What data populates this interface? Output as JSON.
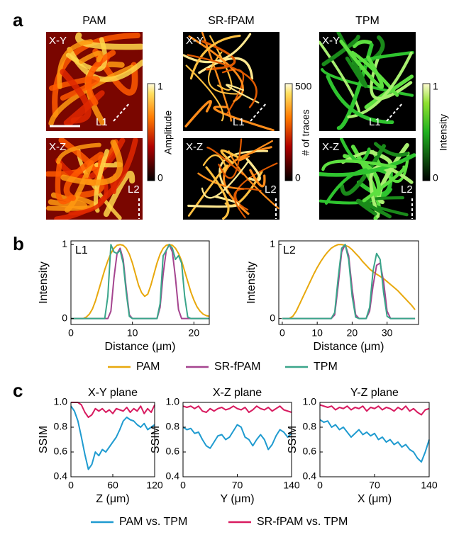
{
  "panel_a": {
    "label": "a",
    "columns": [
      {
        "title": "PAM",
        "colorbar": {
          "label": "Amplitude",
          "max": 1,
          "min": 0
        }
      },
      {
        "title": "SR-fPAM",
        "colorbar": {
          "label": "# of traces",
          "max": 500,
          "min": 0
        }
      },
      {
        "title": "TPM",
        "colorbar": {
          "label": "Intensity",
          "max": 1,
          "min": 0
        }
      }
    ],
    "view_labels": [
      "X-Y",
      "X-Z"
    ],
    "line_labels": [
      "L1",
      "L2"
    ]
  },
  "panel_b": {
    "label": "b"
  },
  "panel_c": {
    "label": "c"
  },
  "chart_data": [
    {
      "type": "line",
      "annotation": "L1",
      "xlabel": "Distance (μm)",
      "ylabel": "Intensity",
      "xlim": [
        0,
        22.5
      ],
      "ylim": [
        -0.08,
        1.05
      ],
      "xticks": [
        0,
        10,
        20
      ],
      "yticks": [
        0,
        1
      ],
      "x": [
        0,
        0.5,
        1,
        1.5,
        2,
        2.5,
        3,
        3.5,
        4,
        4.5,
        5,
        5.5,
        6,
        6.5,
        7,
        7.5,
        8,
        8.5,
        9,
        9.5,
        10,
        10.5,
        11,
        11.5,
        12,
        12.5,
        13,
        13.5,
        14,
        14.5,
        15,
        15.5,
        16,
        16.5,
        17,
        17.5,
        18,
        18.5,
        19,
        19.5,
        20,
        20.5,
        21,
        21.5,
        22,
        22.5
      ],
      "series": [
        {
          "name": "PAM",
          "color": "#e8a80c",
          "values": [
            0,
            0,
            0,
            0,
            0,
            0.02,
            0.06,
            0.13,
            0.24,
            0.38,
            0.52,
            0.66,
            0.78,
            0.88,
            0.95,
            0.99,
            1.0,
            0.99,
            0.95,
            0.87,
            0.75,
            0.6,
            0.45,
            0.35,
            0.3,
            0.33,
            0.45,
            0.6,
            0.75,
            0.87,
            0.95,
            0.99,
            1.0,
            0.99,
            0.95,
            0.88,
            0.78,
            0.64,
            0.5,
            0.36,
            0.25,
            0.16,
            0.1,
            0.06,
            0.04,
            0.03
          ]
        },
        {
          "name": "SR-fPAM",
          "color": "#a5448f",
          "values": [
            0,
            0,
            0,
            0,
            0,
            0,
            0,
            0,
            0,
            0,
            0,
            0,
            0,
            0.1,
            0.55,
            0.88,
            0.95,
            0.8,
            0.4,
            0.05,
            0,
            0,
            0,
            0,
            0,
            0,
            0,
            0,
            0,
            0.15,
            0.6,
            0.92,
            1.0,
            0.9,
            0.55,
            0.12,
            0,
            0,
            0,
            0,
            0,
            0,
            0,
            0,
            0,
            0
          ]
        },
        {
          "name": "TPM",
          "color": "#3aa58a",
          "values": [
            0,
            0,
            0,
            0,
            0,
            0,
            0,
            0,
            0,
            0,
            0,
            0,
            0.3,
            1.0,
            0.9,
            0.88,
            0.92,
            0.75,
            0.35,
            0.03,
            0,
            0,
            0,
            0,
            0,
            0,
            0,
            0,
            0,
            0.2,
            0.85,
            0.92,
            1.0,
            0.95,
            0.8,
            0.85,
            0.75,
            0.3,
            0.02,
            0,
            0,
            0,
            0,
            0,
            0,
            0
          ]
        }
      ]
    },
    {
      "type": "line",
      "annotation": "L2",
      "xlabel": "Distance (μm)",
      "ylabel": "Intensity",
      "xlim": [
        -1,
        39
      ],
      "ylim": [
        -0.08,
        1.05
      ],
      "xticks": [
        0,
        10,
        20,
        30
      ],
      "yticks": [
        0,
        1
      ],
      "x": [
        0,
        1,
        2,
        3,
        4,
        5,
        6,
        7,
        8,
        9,
        10,
        11,
        12,
        13,
        14,
        15,
        16,
        17,
        18,
        19,
        20,
        21,
        22,
        23,
        24,
        25,
        26,
        27,
        28,
        29,
        30,
        31,
        32,
        33,
        34,
        35,
        36,
        37,
        38
      ],
      "series": [
        {
          "name": "PAM",
          "color": "#e8a80c",
          "values": [
            0,
            0,
            0,
            0.03,
            0.1,
            0.2,
            0.3,
            0.4,
            0.5,
            0.6,
            0.69,
            0.77,
            0.84,
            0.9,
            0.95,
            0.98,
            1.0,
            1.0,
            0.99,
            0.97,
            0.93,
            0.88,
            0.83,
            0.77,
            0.72,
            0.67,
            0.63,
            0.6,
            0.57,
            0.54,
            0.5,
            0.46,
            0.42,
            0.38,
            0.33,
            0.28,
            0.23,
            0.18,
            0.12
          ]
        },
        {
          "name": "SR-fPAM",
          "color": "#a5448f",
          "values": [
            0,
            0,
            0,
            0,
            0,
            0,
            0,
            0,
            0,
            0,
            0,
            0,
            0,
            0,
            0,
            0.05,
            0.45,
            0.9,
            1.0,
            0.85,
            0.4,
            0.05,
            0,
            0,
            0,
            0.1,
            0.45,
            0.72,
            0.75,
            0.5,
            0.1,
            0,
            0,
            0,
            0,
            0,
            0,
            0,
            0
          ]
        },
        {
          "name": "TPM",
          "color": "#3aa58a",
          "values": [
            0,
            0,
            0,
            0,
            0,
            0,
            0,
            0,
            0,
            0,
            0,
            0,
            0,
            0,
            0,
            0.08,
            0.55,
            0.95,
            1.0,
            0.8,
            0.3,
            0.02,
            0,
            0,
            0,
            0.15,
            0.65,
            0.88,
            0.8,
            0.35,
            0.03,
            0,
            0,
            0,
            0,
            0,
            0,
            0,
            0
          ]
        }
      ]
    },
    {
      "type": "line",
      "title": "X-Y plane",
      "xlabel": "Z (μm)",
      "ylabel": "SSIM",
      "xlim": [
        0,
        120
      ],
      "ylim": [
        0.4,
        1.0
      ],
      "xticks": [
        0,
        60,
        120
      ],
      "yticks": [
        0.4,
        0.6,
        0.8,
        {
          "value": 1.0,
          "label": "1.0"
        }
      ],
      "x": [
        0,
        5,
        10,
        15,
        20,
        25,
        30,
        35,
        40,
        45,
        50,
        55,
        60,
        65,
        70,
        75,
        80,
        85,
        90,
        95,
        100,
        105,
        110,
        115,
        120
      ],
      "series": [
        {
          "name": "PAM vs. TPM",
          "color": "#1f9bd0",
          "values": [
            0.97,
            0.93,
            0.85,
            0.72,
            0.58,
            0.46,
            0.5,
            0.6,
            0.57,
            0.62,
            0.6,
            0.64,
            0.68,
            0.72,
            0.78,
            0.85,
            0.88,
            0.86,
            0.85,
            0.82,
            0.8,
            0.83,
            0.78,
            0.8,
            0.82
          ]
        },
        {
          "name": "SR-fPAM vs. TPM",
          "color": "#d81b60",
          "values": [
            1.0,
            1.0,
            1.0,
            0.98,
            0.92,
            0.88,
            0.9,
            0.95,
            0.93,
            0.95,
            0.92,
            0.94,
            0.91,
            0.95,
            0.94,
            0.93,
            0.96,
            0.92,
            0.95,
            0.93,
            0.97,
            0.91,
            0.95,
            0.92,
            0.98
          ]
        }
      ]
    },
    {
      "type": "line",
      "title": "X-Z plane",
      "xlabel": "Y (μm)",
      "ylabel": "SSIM",
      "xlim": [
        0,
        140
      ],
      "ylim": [
        0.4,
        1.0
      ],
      "xticks": [
        0,
        70,
        140
      ],
      "yticks": [
        0.4,
        0.6,
        0.8,
        {
          "value": 1.0,
          "label": "1.0"
        }
      ],
      "x": [
        0,
        5,
        10,
        15,
        20,
        25,
        30,
        35,
        40,
        45,
        50,
        55,
        60,
        65,
        70,
        75,
        80,
        85,
        90,
        95,
        100,
        105,
        110,
        115,
        120,
        125,
        130,
        135,
        140
      ],
      "series": [
        {
          "name": "PAM vs. TPM",
          "color": "#1f9bd0",
          "values": [
            0.8,
            0.78,
            0.79,
            0.75,
            0.76,
            0.7,
            0.65,
            0.63,
            0.68,
            0.73,
            0.74,
            0.7,
            0.72,
            0.77,
            0.82,
            0.8,
            0.72,
            0.7,
            0.65,
            0.7,
            0.74,
            0.7,
            0.62,
            0.66,
            0.73,
            0.78,
            0.76,
            0.72,
            0.75
          ]
        },
        {
          "name": "SR-fPAM vs. TPM",
          "color": "#d81b60",
          "values": [
            0.97,
            0.96,
            0.97,
            0.95,
            0.97,
            0.93,
            0.92,
            0.95,
            0.93,
            0.95,
            0.96,
            0.94,
            0.95,
            0.97,
            0.95,
            0.94,
            0.96,
            0.92,
            0.94,
            0.97,
            0.95,
            0.94,
            0.96,
            0.93,
            0.95,
            0.97,
            0.94,
            0.93,
            0.92
          ]
        }
      ]
    },
    {
      "type": "line",
      "title": "Y-Z plane",
      "xlabel": "X (μm)",
      "ylabel": "SSIM",
      "xlim": [
        0,
        140
      ],
      "ylim": [
        0.4,
        1.0
      ],
      "xticks": [
        0,
        70,
        140
      ],
      "yticks": [
        0.4,
        0.6,
        0.8,
        {
          "value": 1.0,
          "label": "1.0"
        }
      ],
      "x": [
        0,
        5,
        10,
        15,
        20,
        25,
        30,
        35,
        40,
        45,
        50,
        55,
        60,
        65,
        70,
        75,
        80,
        85,
        90,
        95,
        100,
        105,
        110,
        115,
        120,
        125,
        130,
        135,
        140
      ],
      "series": [
        {
          "name": "PAM vs. TPM",
          "color": "#1f9bd0",
          "values": [
            0.86,
            0.84,
            0.85,
            0.8,
            0.82,
            0.78,
            0.8,
            0.76,
            0.72,
            0.75,
            0.78,
            0.74,
            0.76,
            0.73,
            0.75,
            0.7,
            0.72,
            0.68,
            0.7,
            0.66,
            0.68,
            0.64,
            0.66,
            0.62,
            0.6,
            0.55,
            0.52,
            0.6,
            0.7
          ]
        },
        {
          "name": "SR-fPAM vs. TPM",
          "color": "#d81b60",
          "values": [
            0.98,
            0.97,
            0.96,
            0.97,
            0.94,
            0.96,
            0.95,
            0.97,
            0.94,
            0.96,
            0.95,
            0.97,
            0.93,
            0.96,
            0.95,
            0.97,
            0.94,
            0.96,
            0.95,
            0.93,
            0.96,
            0.94,
            0.97,
            0.93,
            0.95,
            0.92,
            0.9,
            0.94,
            0.95
          ]
        }
      ]
    }
  ]
}
